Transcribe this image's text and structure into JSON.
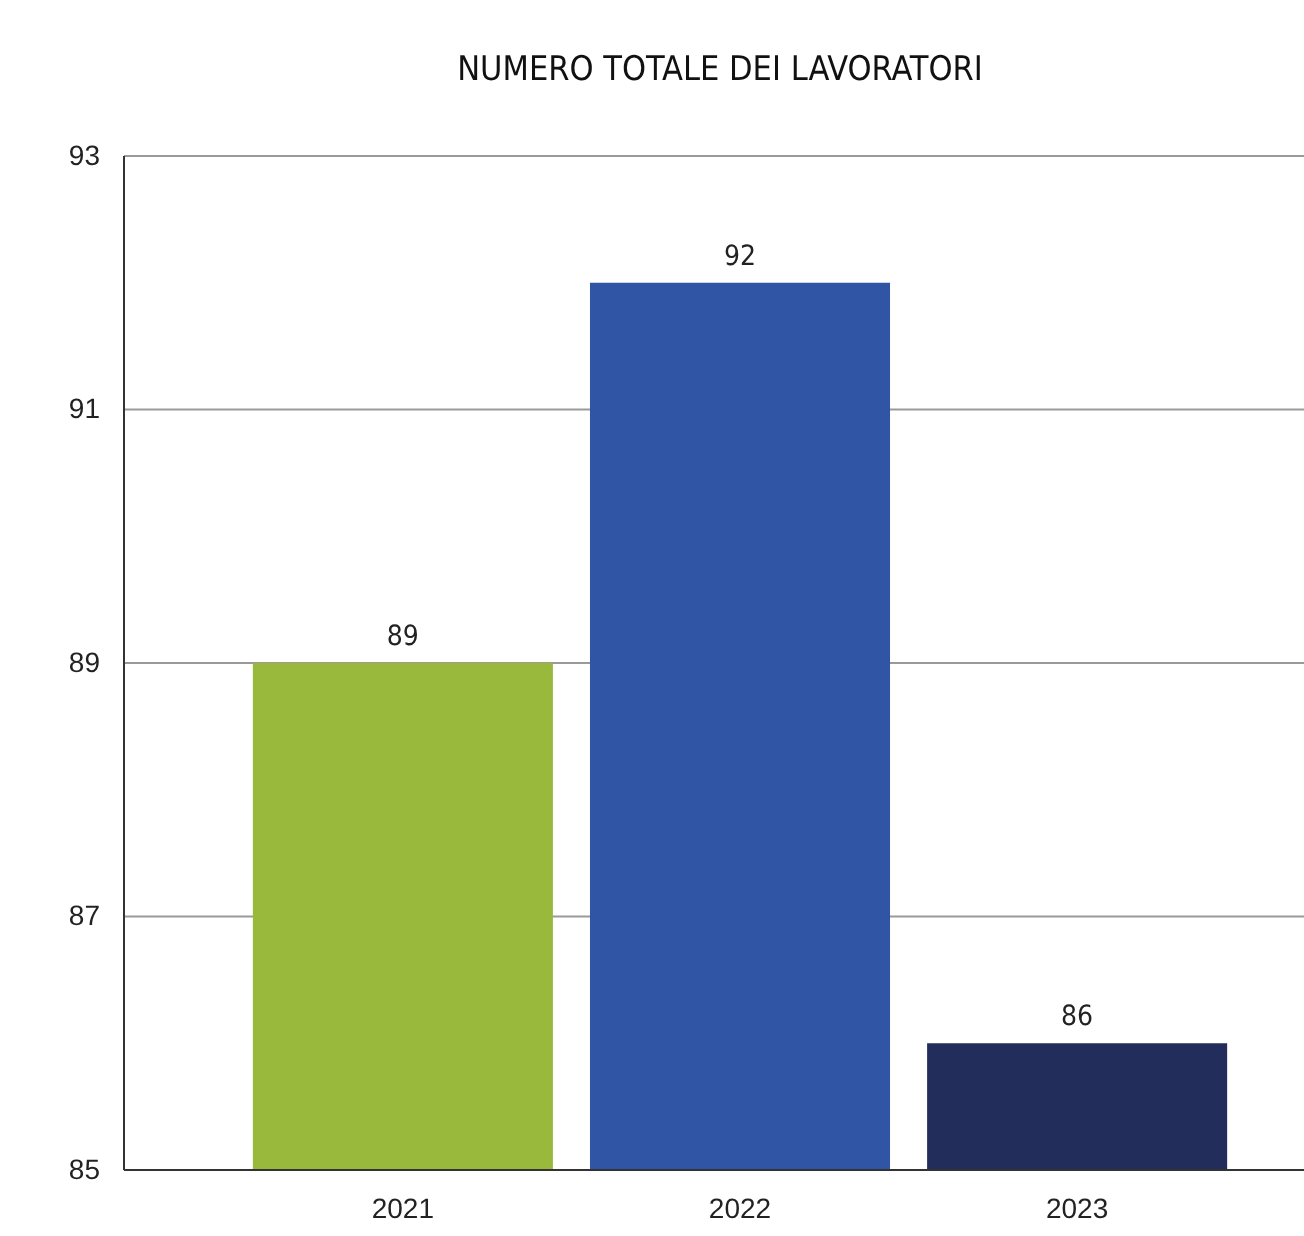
{
  "chart_data": {
    "type": "bar",
    "title": "NUMERO TOTALE DEI LAVORATORI",
    "categories": [
      "2021",
      "2022",
      "2023"
    ],
    "values": [
      89,
      92,
      86
    ],
    "colors": [
      "#98b93b",
      "#2f55a4",
      "#222d5c"
    ],
    "ylim": [
      85,
      93
    ],
    "yticks": [
      85,
      87,
      89,
      91,
      93
    ],
    "grid": "y",
    "data_labels": true
  }
}
